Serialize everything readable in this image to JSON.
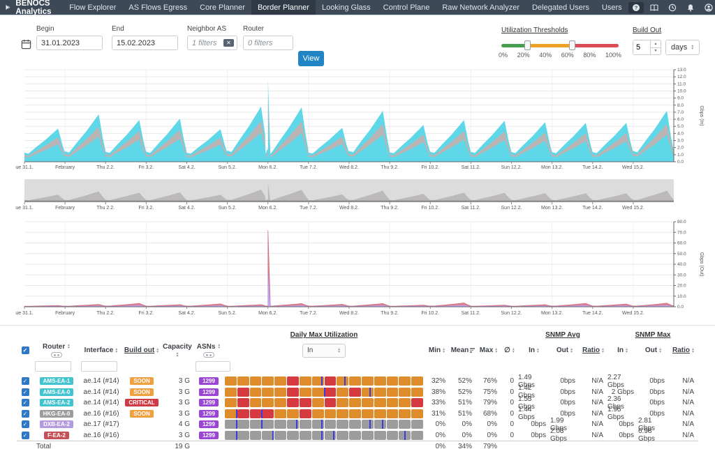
{
  "nav": {
    "brand": "BENOCS Analytics",
    "items": [
      "Flow Explorer",
      "AS Flows Egress",
      "Core Planner",
      "Border Planner",
      "Looking Glass",
      "Control Plane",
      "Raw Network Analyzer",
      "Delegated Users",
      "Users"
    ],
    "active": "Border Planner",
    "icons": [
      "help",
      "book",
      "history",
      "bell",
      "user"
    ]
  },
  "filters": {
    "begin": {
      "label": "Begin",
      "value": "31.01.2023"
    },
    "end": {
      "label": "End",
      "value": "15.02.2023"
    },
    "neighbor": {
      "label": "Neighbor AS",
      "value": "1 filters"
    },
    "router": {
      "label": "Router",
      "value": "0 filters"
    },
    "view_label": "View",
    "thresholds": {
      "title": "Utilization Thresholds",
      "ticks": [
        "0%",
        "20%",
        "40%",
        "60%",
        "80%",
        "100%"
      ],
      "handles_pct": [
        22,
        60
      ],
      "colors": {
        "low": "#44a04e",
        "mid": "#eda122",
        "high": "#dc4b55"
      }
    },
    "build_out": {
      "title": "Build Out",
      "value": "5",
      "unit": "days"
    }
  },
  "chart_data": [
    {
      "id": "traffic_in",
      "type": "area",
      "title": "",
      "xlabel": "",
      "ylabel": "Gbps (In)",
      "ylim": [
        0,
        13
      ],
      "ytick_step": 1,
      "grid": true,
      "legend": "none",
      "x_labels": [
        "ue 31.1.",
        "February",
        "Thu 2.2.",
        "Fri 3.2.",
        "Sat 4.2.",
        "Sun 5.2.",
        "Mon 6.2.",
        "Tue 7.2.",
        "Wed 8.2.",
        "Thu 9.2.",
        "Fri 10.2.",
        "Sat 11.2.",
        "Sun 12.2.",
        "Mon 13.2.",
        "Tue 14.2.",
        "Wed 15.2."
      ],
      "day_peaks_gbps": [
        4.7,
        6.7,
        5.9,
        6.1,
        4.6,
        7.8,
        7.7,
        4.8,
        7.2,
        5.2,
        5.9,
        5.8,
        5.6,
        5.5,
        5.5,
        7.2
      ],
      "base_gbps": 0.9,
      "band_frac": [
        0.53,
        0.74
      ],
      "spike": {
        "x_day": 6,
        "value_gbps": 11.7
      },
      "colors": {
        "area": "#5ed7e8",
        "band": "#bab4b4"
      }
    },
    {
      "id": "overview_brush",
      "type": "area",
      "role": "brush",
      "x_labels": [
        "ue 31.1.",
        "February",
        "Thu 2.2.",
        "Fri 3.2.",
        "Sat 4.2.",
        "Sun 5.2.",
        "Mon 6.2.",
        "Tue 7.2.",
        "Wed 8.2.",
        "Thu 9.2.",
        "Fri 10.2.",
        "Sat 11.2.",
        "Sun 12.2.",
        "Mon 13.2.",
        "Tue 14.2.",
        "Wed 15.2."
      ],
      "colors": {
        "bg": "#dcdcdc",
        "area": "#bcb9b9",
        "baseline": "#8f8f8f"
      }
    },
    {
      "id": "traffic_out",
      "type": "area",
      "title": "",
      "xlabel": "",
      "ylabel": "Gbps (Out)",
      "ylim": [
        0,
        80
      ],
      "ytick_step": 10,
      "grid": true,
      "legend": "none",
      "x_labels": [
        "ue 31.1.",
        "February",
        "Thu 2.2.",
        "Fri 3.2.",
        "Sat 4.2.",
        "Sun 5.2.",
        "Mon 6.2.",
        "Tue 7.2.",
        "Wed 8.2.",
        "Thu 9.2.",
        "Fri 10.2.",
        "Sat 11.2.",
        "Sun 12.2.",
        "Mon 13.2.",
        "Tue 14.2.",
        "Wed 15.2."
      ],
      "day_peaks_gbps": [
        1.2,
        2.2,
        3.2,
        2.0,
        2.8,
        2.0,
        3.0,
        2.4,
        3.0,
        1.6,
        3.6,
        1.6,
        2.0,
        3.2,
        2.6,
        3.4
      ],
      "base_gbps": 0.5,
      "lower_layer_frac": 0.45,
      "spike": {
        "x_day": 6,
        "value_gbps": 72
      },
      "colors": {
        "area": "#e2808e",
        "area_edge": "#d06b79",
        "lower": "#c4a5f1",
        "lower_edge": "#a98ae0"
      }
    }
  ],
  "table": {
    "group_headers": {
      "daily_max": "Daily Max Utilization",
      "snmp_avg": "SNMP Avg",
      "snmp_max": "SNMP Max"
    },
    "headers": {
      "router": "Router",
      "interface": "Interface",
      "build_out": "Build out",
      "capacity": "Capacity",
      "asns": "ASNs",
      "min": "Min",
      "mean": "Mean",
      "max": "Max",
      "zero": "∅",
      "in": "In",
      "out": "Out",
      "ratio": "Ratio"
    },
    "direction_value": "In",
    "heat_colors": {
      "O": "#df8c2d",
      "R": "#d53a41",
      "G": "#9c9c9c"
    },
    "rows": [
      {
        "checked": true,
        "router": "AMS-EA-1",
        "router_color": "#41c3d0",
        "iface": "ae.14 (#14)",
        "build_out": "SOON",
        "build_out_color": "#efa041",
        "capacity": "3 G",
        "asn": "1299",
        "asn_color": "#9b45d6",
        "heat": "OOOOOROOROOOOOOO",
        "markers": [
          7.75,
          9.6
        ],
        "min": "32%",
        "mean": "52%",
        "max": "76%",
        "zero": "0",
        "avg_in": "1.49 Gbps",
        "avg_out": "0bps",
        "avg_ratio": "N/A",
        "max_in": "2.27 Gbps",
        "max_out": "0bps",
        "max_ratio": "N/A"
      },
      {
        "checked": true,
        "router": "AMS-EA-0",
        "router_color": "#41c3d0",
        "iface": "ae.14 (#14)",
        "build_out": "SOON",
        "build_out_color": "#efa041",
        "capacity": "3 G",
        "asn": "1299",
        "asn_color": "#9b45d6",
        "heat": "OROOOROOROROOOOO",
        "markers": [
          8.0,
          11.6
        ],
        "min": "38%",
        "mean": "52%",
        "max": "75%",
        "zero": "0",
        "avg_in": "1.42 Gbps",
        "avg_out": "0bps",
        "avg_ratio": "N/A",
        "max_in": "2 Gbps",
        "max_out": "0bps",
        "max_ratio": "N/A"
      },
      {
        "checked": true,
        "router": "AMS-EA-2",
        "router_color": "#41c3d0",
        "iface": "ae.14 (#14)",
        "build_out": "CRITICAL",
        "build_out_color": "#cf3a44",
        "capacity": "3 G",
        "asn": "1299",
        "asn_color": "#9b45d6",
        "heat": "OROOORROROOOOOOR",
        "markers": [],
        "min": "33%",
        "mean": "51%",
        "max": "79%",
        "zero": "0",
        "avg_in": "1.53 Gbps",
        "avg_out": "0bps",
        "avg_ratio": "N/A",
        "max_in": "2.36 Gbps",
        "max_out": "0bps",
        "max_ratio": "N/A"
      },
      {
        "checked": true,
        "router": "HKG-EA-0",
        "router_color": "#9c9c9c",
        "iface": "ae.16 (#16)",
        "build_out": "SOON",
        "build_out_color": "#efa041",
        "capacity": "3 G",
        "asn": "1299",
        "asn_color": "#9b45d6",
        "heat": "ORRROOROOOOOOOOO",
        "markers": [
          1.0,
          3.0
        ],
        "min": "31%",
        "mean": "51%",
        "max": "68%",
        "zero": "0",
        "avg_in": "1.44 Gbps",
        "avg_out": "0bps",
        "avg_ratio": "N/A",
        "max_in": "1.95 Gbps",
        "max_out": "0bps",
        "max_ratio": "N/A"
      },
      {
        "checked": true,
        "router": "DXB-EA-2",
        "router_color": "#b49be0",
        "iface": "ae.17 (#17)",
        "build_out": "",
        "build_out_color": "",
        "capacity": "4 G",
        "asn": "1299",
        "asn_color": "#9b45d6",
        "heat": "GGGGGGGGGGGGGGGG",
        "markers": [
          1.0,
          3.0,
          5.8,
          7.8,
          11.6,
          12.6
        ],
        "min": "0%",
        "mean": "0%",
        "max": "0%",
        "zero": "0",
        "avg_in": "0bps",
        "avg_out": "1.99 Gbps",
        "avg_ratio": "N/A",
        "max_in": "0bps",
        "max_out": "2.81 Gbps",
        "max_ratio": "N/A"
      },
      {
        "checked": true,
        "router": "F-EA-2",
        "router_color": "#c65058",
        "iface": "ae.16 (#16)",
        "build_out": "",
        "build_out_color": "",
        "capacity": "3 G",
        "asn": "1299",
        "asn_color": "#9b45d6",
        "heat": "GGGGGGGGGGGGGGGG",
        "markers": [
          1.0,
          3.9,
          7.8,
          8.7,
          14.4
        ],
        "min": "0%",
        "mean": "0%",
        "max": "0%",
        "zero": "0",
        "avg_in": "0bps",
        "avg_out": "2.03 Gbps",
        "avg_ratio": "N/A",
        "max_in": "0bps",
        "max_out": "6.98 Gbps",
        "max_ratio": "N/A"
      }
    ],
    "total": {
      "label": "Total",
      "capacity": "19 G",
      "min": "0%",
      "mean": "34%",
      "max": "79%"
    }
  }
}
